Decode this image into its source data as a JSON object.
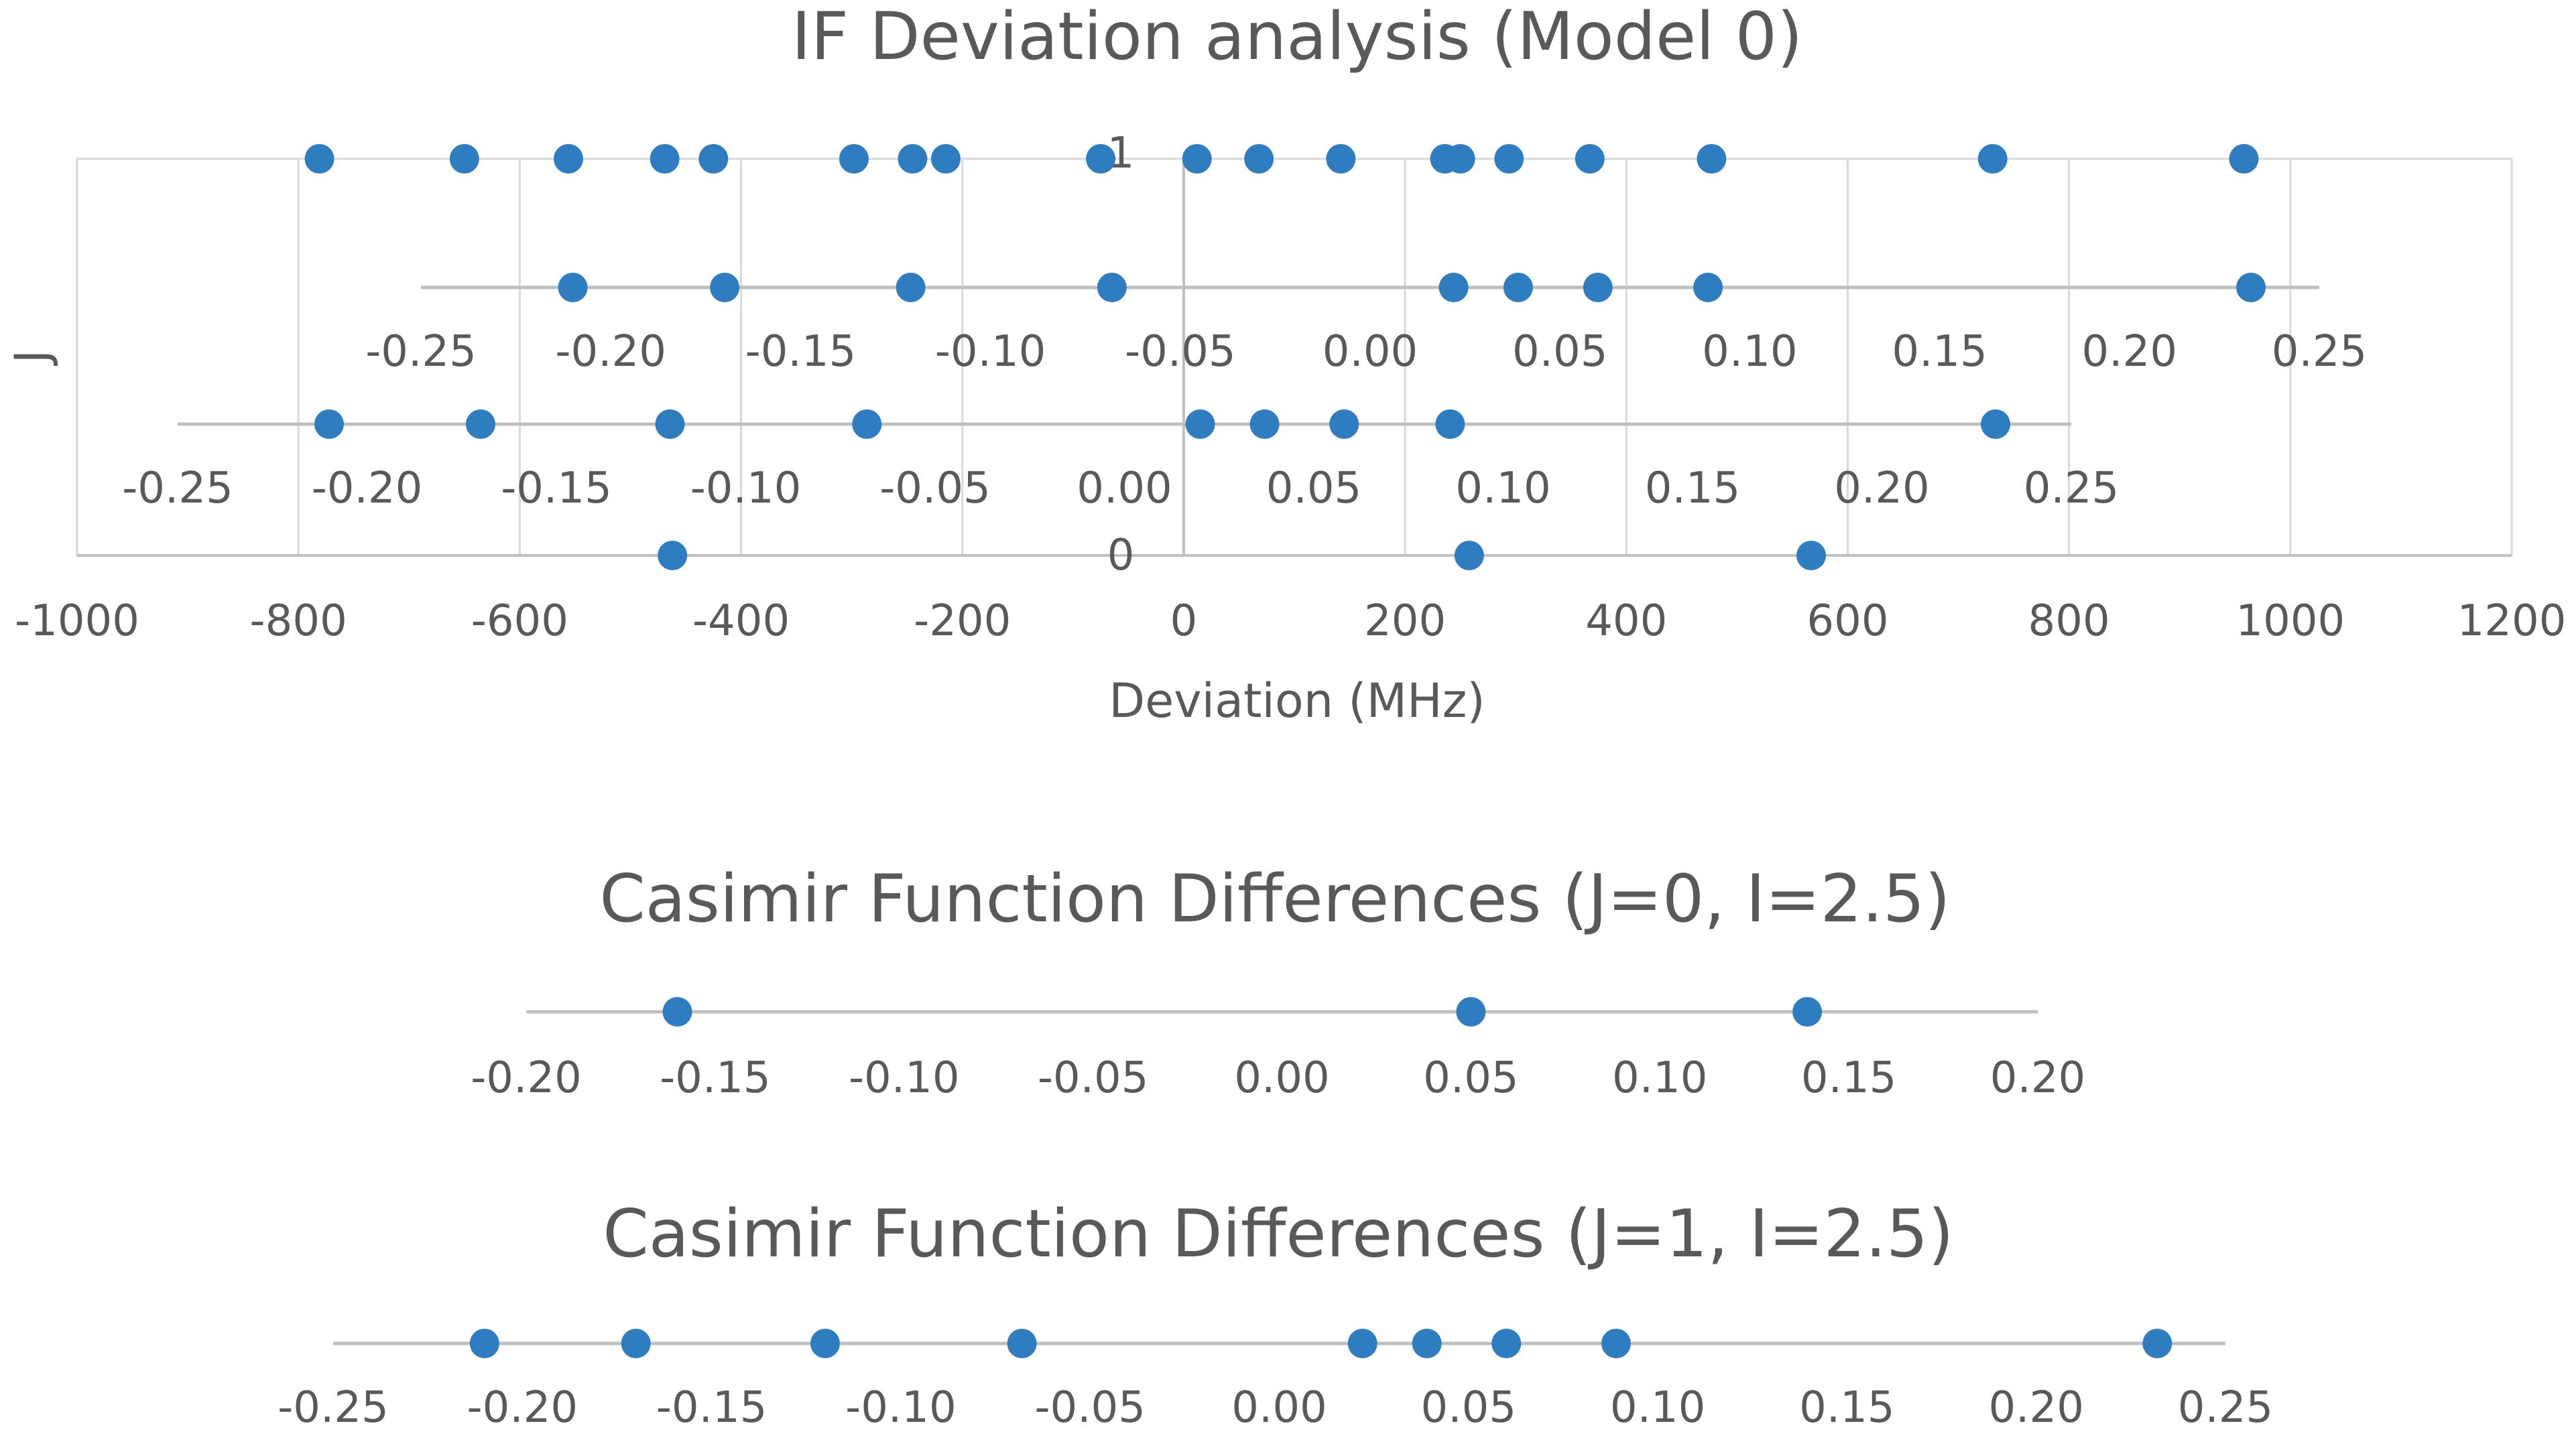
{
  "colors": {
    "point": "#2E7DC1",
    "axis": "#BFBFBF",
    "grid": "#D9D9D9",
    "text": "#595959"
  },
  "chart_data": [
    {
      "type": "scatter",
      "title": "IF Deviation analysis (Model 0)",
      "xlabel": "Deviation (MHz)",
      "ylabel": "J",
      "xlim": [
        -1000,
        1200
      ],
      "xticks": [
        -1000,
        -800,
        -600,
        -400,
        -200,
        0,
        200,
        400,
        600,
        800,
        1000,
        1200
      ],
      "ylim": [
        0,
        1
      ],
      "yticks": [
        0,
        1
      ],
      "grid": true,
      "series": [
        {
          "name": "J=1",
          "y": 1,
          "x": [
            -781,
            -650,
            -556,
            -469,
            -425,
            -298,
            -245,
            -215,
            -75,
            12,
            68,
            142,
            236,
            250,
            294,
            367,
            477,
            731,
            958
          ]
        },
        {
          "name": "J=0",
          "y": 0,
          "x": [
            -462,
            258,
            567
          ]
        }
      ]
    },
    {
      "type": "scatter",
      "title": "Casimir Function Differences (J=1, I=2.5)",
      "overlaid_in_main_chart": true,
      "xlim": [
        -0.25,
        0.25
      ],
      "xtick_labels": [
        "-0.25",
        "-0.20",
        "-0.15",
        "-0.10",
        "-0.05",
        "0.00",
        "0.05",
        "0.10",
        "0.15",
        "0.20",
        "0.25"
      ],
      "x": [
        -0.21,
        -0.17,
        -0.121,
        -0.068,
        0.022,
        0.039,
        0.06,
        0.089,
        0.232
      ]
    },
    {
      "type": "scatter",
      "title": "Casimir Function Differences (J=0, I=2.5)",
      "overlaid_in_main_chart": true,
      "xlim": [
        -0.25,
        0.25
      ],
      "xtick_labels": [
        "-0.25",
        "-0.20",
        "-0.15",
        "-0.10",
        "-0.05",
        "0.00",
        "0.05",
        "0.10",
        "0.15",
        "0.20",
        "0.25"
      ],
      "x": [
        -0.21,
        -0.17,
        -0.12,
        -0.068,
        0.02,
        0.037,
        0.058,
        0.086,
        0.23
      ]
    },
    {
      "type": "scatter",
      "title": "Casimir Function Differences (J=0, I=2.5)",
      "xlim": [
        -0.2,
        0.2
      ],
      "xtick_labels": [
        "-0.20",
        "-0.15",
        "-0.10",
        "-0.05",
        "0.00",
        "0.05",
        "0.10",
        "0.15",
        "0.20"
      ],
      "x": [
        -0.16,
        0.05,
        0.139
      ]
    },
    {
      "type": "scatter",
      "title": "Casimir Function Differences (J=1, I=2.5)",
      "xlim": [
        -0.25,
        0.25
      ],
      "xtick_labels": [
        "-0.25",
        "-0.20",
        "-0.15",
        "-0.10",
        "-0.05",
        "0.00",
        "0.05",
        "0.10",
        "0.15",
        "0.20",
        "0.25"
      ],
      "x": [
        -0.21,
        -0.17,
        -0.12,
        -0.068,
        0.022,
        0.039,
        0.06,
        0.089,
        0.232
      ]
    }
  ]
}
